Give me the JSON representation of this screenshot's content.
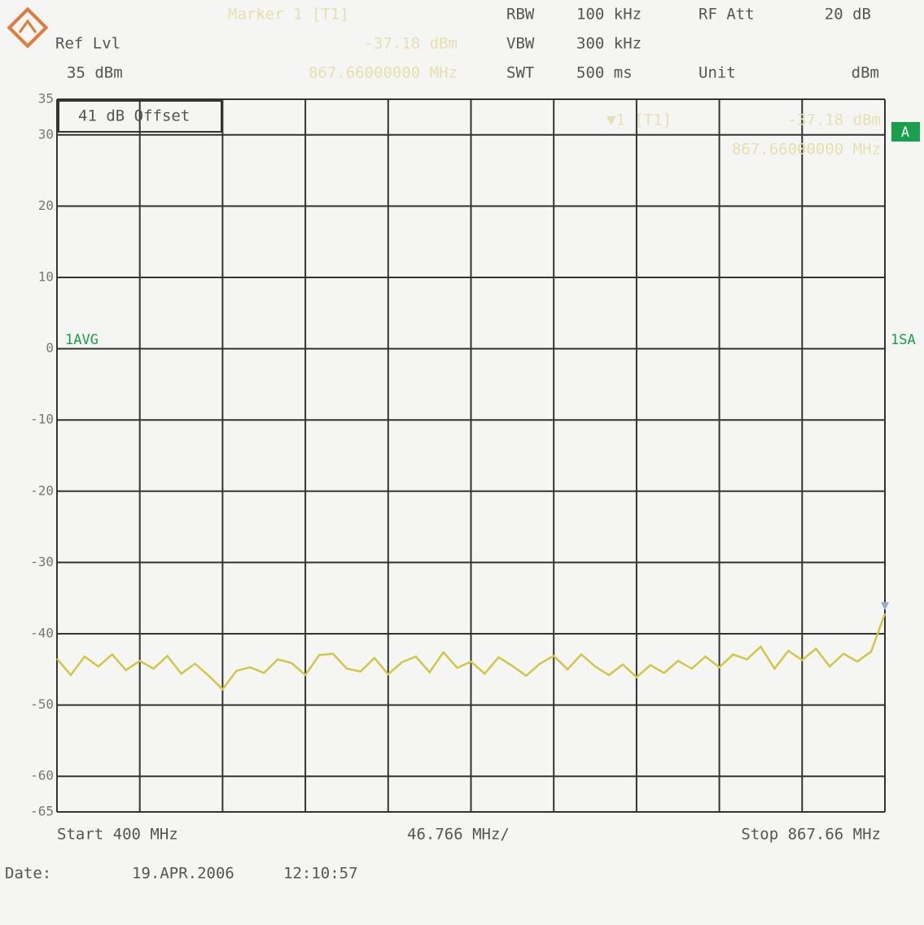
{
  "header": {
    "marker_title": "Marker 1 [T1]",
    "marker_level": "-37.18 dBm",
    "marker_freq": "867.66000000 MHz",
    "ref_lvl_label": "Ref Lvl",
    "ref_lvl": "35 dBm",
    "rbw_label": "RBW",
    "rbw": "100 kHz",
    "vbw_label": "VBW",
    "vbw": "300 kHz",
    "swt_label": "SWT",
    "swt": "500 ms",
    "rf_att_label": "RF Att",
    "rf_att": "20 dB",
    "unit_label": "Unit",
    "unit": "dBm"
  },
  "chart_data": {
    "type": "line",
    "offset_note": "41 dB Offset",
    "marker_label": "▼1 [T1]",
    "marker_level": "-37.18 dBm",
    "marker_freq": "867.66000000 MHz",
    "trace_flag": "A",
    "left_label": "1AVG",
    "right_label": "1SA",
    "start_label": "Start 400 MHz",
    "span_label": "46.766 MHz/",
    "stop_label": "Stop 867.66 MHz",
    "date_label": "Date:",
    "date": "19.APR.2006",
    "time": "12:10:57",
    "x": [
      400,
      407.79,
      415.59,
      423.38,
      431.18,
      438.97,
      446.77,
      454.56,
      462.35,
      470.15,
      477.94,
      485.74,
      493.53,
      501.33,
      509.12,
      516.92,
      524.71,
      532.5,
      540.3,
      548.09,
      555.89,
      563.68,
      571.48,
      579.27,
      587.06,
      594.86,
      602.65,
      610.45,
      618.24,
      626.04,
      633.83,
      641.62,
      649.42,
      657.21,
      665.01,
      672.8,
      680.6,
      688.39,
      696.18,
      703.98,
      711.77,
      719.57,
      727.36,
      735.16,
      742.95,
      750.75,
      758.54,
      766.33,
      774.13,
      781.92,
      789.72,
      797.51,
      805.31,
      813.1,
      820.89,
      828.69,
      836.48,
      844.28,
      852.07,
      859.87,
      867.66
    ],
    "series": [
      {
        "color": "#d2c64a",
        "values": [
          -43.5,
          -45.8,
          -43.2,
          -44.6,
          -42.9,
          -45.1,
          -43.8,
          -44.9,
          -43.1,
          -45.6,
          -44.2,
          -45.9,
          -47.8,
          -45.2,
          -44.7,
          -45.5,
          -43.6,
          -44.1,
          -45.8,
          -43.0,
          -42.8,
          -44.9,
          -45.3,
          -43.4,
          -45.7,
          -44.0,
          -43.2,
          -45.4,
          -42.6,
          -44.8,
          -43.9,
          -45.6,
          -43.3,
          -44.5,
          -45.9,
          -44.2,
          -43.1,
          -45.0,
          -42.9,
          -44.6,
          -45.8,
          -44.3,
          -46.1,
          -44.4,
          -45.5,
          -43.8,
          -44.9,
          -43.2,
          -44.7,
          -42.9,
          -43.6,
          -41.8,
          -44.9,
          -42.4,
          -43.7,
          -42.1,
          -44.6,
          -42.8,
          -43.9,
          -42.5,
          -37.18
        ]
      }
    ],
    "xlim": [
      400,
      867.66
    ],
    "xticks": [
      400,
      446.766,
      493.532,
      540.298,
      587.064,
      633.83,
      680.596,
      727.362,
      774.128,
      820.894,
      867.66
    ],
    "ylim": [
      -65,
      35
    ],
    "yticks": [
      35,
      30,
      20,
      10,
      0,
      -10,
      -20,
      -30,
      -40,
      -50,
      -60,
      -65
    ],
    "grid": true
  }
}
